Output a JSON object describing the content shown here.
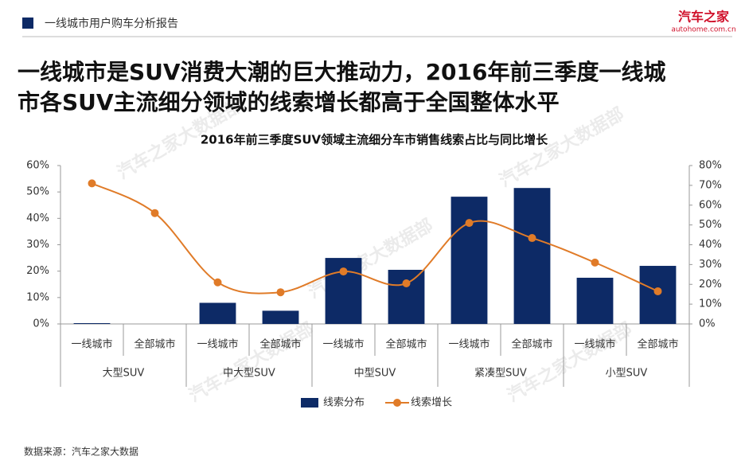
{
  "header": {
    "report_title": "一线城市用户购车分析报告",
    "logo": {
      "name": "汽车之家",
      "domain": "autohome.com.cn"
    }
  },
  "headline": [
    "一线城市是SUV消费大潮的巨大推动力，2016年前三季度一线城",
    "市各SUV主流细分领域的线索增长都高于全国整体水平"
  ],
  "watermark": "汽车之家大数据部",
  "source": "数据来源：汽车之家大数据",
  "chart_data": {
    "type": "bar",
    "title": "2016年前三季度SUV领域主流细分车市销售线索占比与同比增长",
    "categories": [
      "一线城市",
      "全部城市",
      "一线城市",
      "全部城市",
      "一线城市",
      "全部城市",
      "一线城市",
      "全部城市",
      "一线城市",
      "全部城市"
    ],
    "groups": [
      "大型SUV",
      "中大型SUV",
      "中型SUV",
      "紧凑型SUV",
      "小型SUV"
    ],
    "series": [
      {
        "name": "线索分布",
        "type": "bar",
        "color": "#0d2a66",
        "values": [
          0.3,
          0,
          8,
          5,
          25,
          20.5,
          48.2,
          51.5,
          17.5,
          22
        ]
      },
      {
        "name": "线索增长",
        "type": "line",
        "color": "#e07b28",
        "axis": "y2",
        "values": [
          71,
          56,
          21,
          16,
          26.5,
          20.5,
          51,
          43.4,
          31,
          16.5
        ]
      }
    ],
    "ylim": [
      0,
      60
    ],
    "yticks": [
      {
        "value": 0,
        "label": "0%"
      },
      {
        "value": 10,
        "label": "10%"
      },
      {
        "value": 20,
        "label": "20%"
      },
      {
        "value": 30,
        "label": "30%"
      },
      {
        "value": 40,
        "label": "40%"
      },
      {
        "value": 50,
        "label": "50%"
      },
      {
        "value": 60,
        "label": "60%"
      }
    ],
    "y2lim": [
      0,
      80
    ],
    "y2ticks": [
      {
        "value": 0,
        "label": "0%"
      },
      {
        "value": 10,
        "label": "10%"
      },
      {
        "value": 20,
        "label": "20%"
      },
      {
        "value": 30,
        "label": "30%"
      },
      {
        "value": 40,
        "label": "40%"
      },
      {
        "value": 50,
        "label": "50%"
      },
      {
        "value": 60,
        "label": "60%"
      },
      {
        "value": 70,
        "label": "70%"
      },
      {
        "value": 80,
        "label": "80%"
      }
    ],
    "legend": "bottom"
  }
}
